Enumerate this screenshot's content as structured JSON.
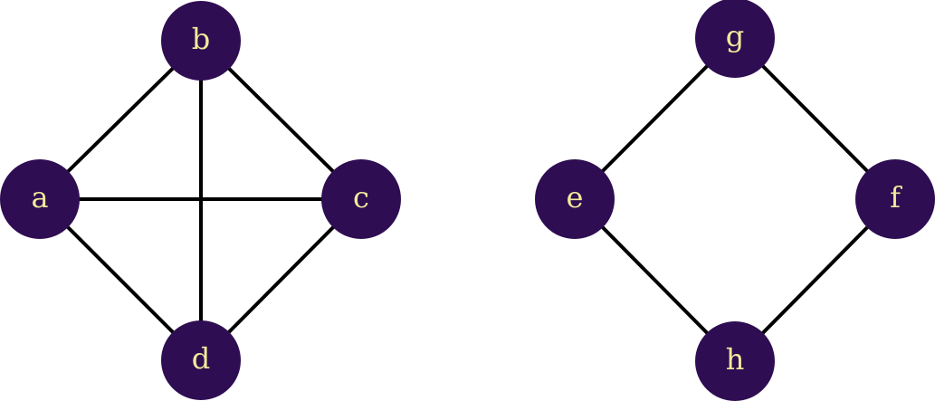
{
  "colors": {
    "node_fill": "#2e0d52",
    "node_text": "#f5e99a",
    "edge": "#000000",
    "background": "#ffffff"
  },
  "graphs": [
    {
      "name": "complete-graph-k4",
      "nodes": [
        {
          "id": "a",
          "label": "a"
        },
        {
          "id": "b",
          "label": "b"
        },
        {
          "id": "c",
          "label": "c"
        },
        {
          "id": "d",
          "label": "d"
        }
      ],
      "edges": [
        [
          "a",
          "b"
        ],
        [
          "b",
          "c"
        ],
        [
          "c",
          "d"
        ],
        [
          "d",
          "a"
        ],
        [
          "a",
          "c"
        ],
        [
          "b",
          "d"
        ]
      ]
    },
    {
      "name": "cycle-graph-c4",
      "nodes": [
        {
          "id": "g",
          "label": "g"
        },
        {
          "id": "e",
          "label": "e"
        },
        {
          "id": "f",
          "label": "f"
        },
        {
          "id": "h",
          "label": "h"
        }
      ],
      "edges": [
        [
          "g",
          "e"
        ],
        [
          "g",
          "f"
        ],
        [
          "e",
          "h"
        ],
        [
          "f",
          "h"
        ]
      ]
    }
  ]
}
